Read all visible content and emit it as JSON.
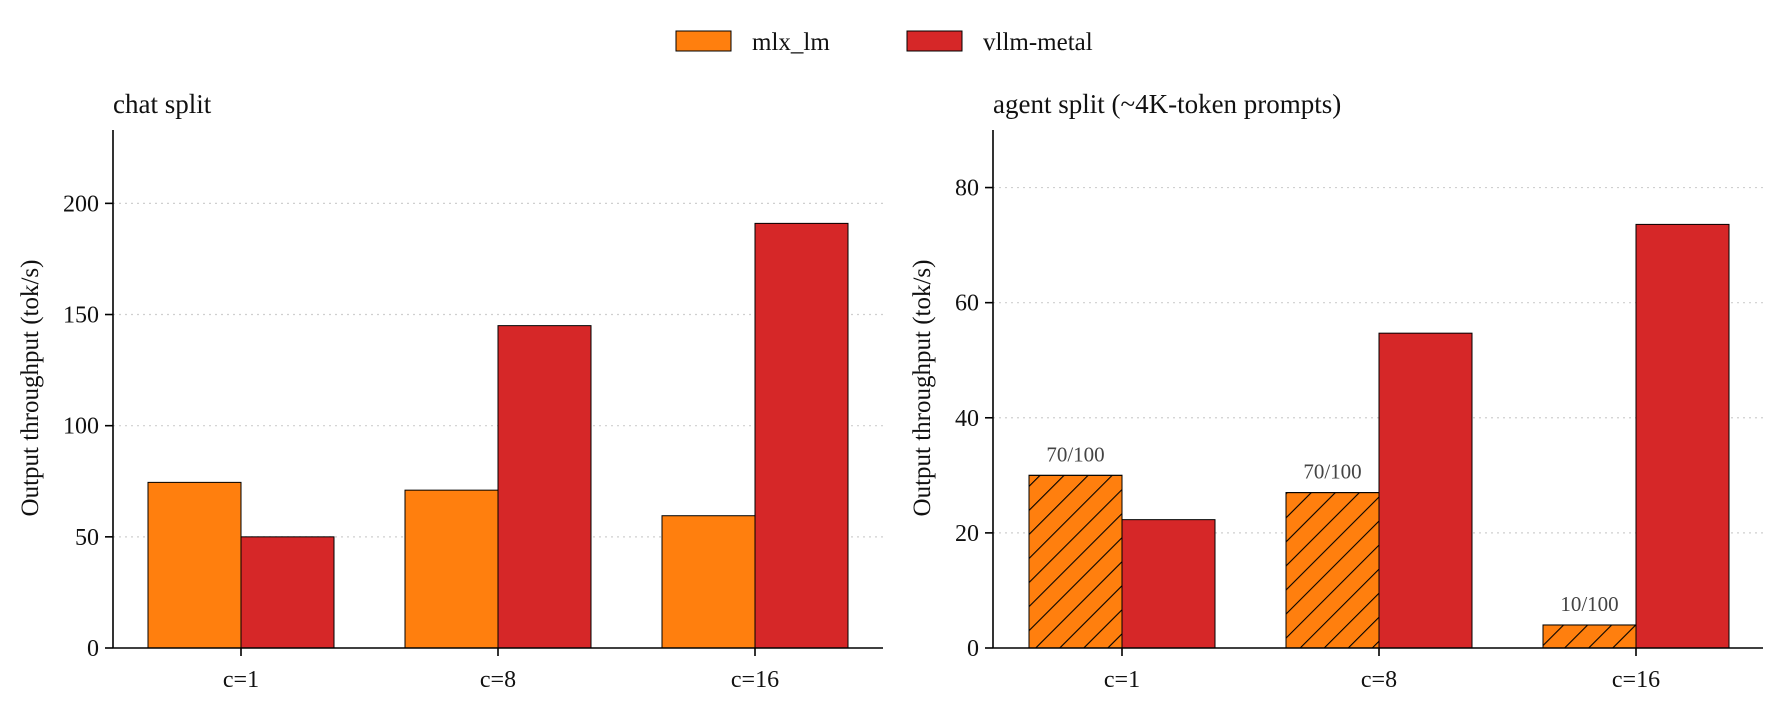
{
  "legend": [
    {
      "name": "mlx_lm",
      "color": "#ff7f0e"
    },
    {
      "name": "vllm-metal",
      "color": "#d62728"
    }
  ],
  "chart_data": [
    {
      "type": "bar",
      "title": "chat split",
      "ylabel": "Output throughput (tok/s)",
      "categories": [
        "c=1",
        "c=8",
        "c=16"
      ],
      "ylim": [
        0,
        233
      ],
      "yticks": [
        0,
        50,
        100,
        150,
        200
      ],
      "grid": true,
      "series": [
        {
          "name": "mlx_lm",
          "color": "#ff7f0e",
          "values": [
            74.5,
            71,
            59.5
          ],
          "hatched": [
            false,
            false,
            false
          ],
          "labels": [
            "",
            "",
            ""
          ]
        },
        {
          "name": "vllm-metal",
          "color": "#d62728",
          "values": [
            50,
            145,
            191
          ],
          "hatched": [
            false,
            false,
            false
          ],
          "labels": [
            "",
            "",
            ""
          ]
        }
      ]
    },
    {
      "type": "bar",
      "title": "agent split (~4K-token prompts)",
      "ylabel": "Output throughput (tok/s)",
      "categories": [
        "c=1",
        "c=8",
        "c=16"
      ],
      "ylim": [
        0,
        90
      ],
      "yticks": [
        0,
        20,
        40,
        60,
        80
      ],
      "grid": true,
      "series": [
        {
          "name": "mlx_lm",
          "color": "#ff7f0e",
          "values": [
            30,
            27,
            4
          ],
          "hatched": [
            true,
            true,
            true
          ],
          "labels": [
            "70/100",
            "70/100",
            "10/100"
          ]
        },
        {
          "name": "vllm-metal",
          "color": "#d62728",
          "values": [
            22.3,
            54.7,
            73.6
          ],
          "hatched": [
            false,
            false,
            false
          ],
          "labels": [
            "",
            "",
            ""
          ]
        }
      ]
    }
  ]
}
